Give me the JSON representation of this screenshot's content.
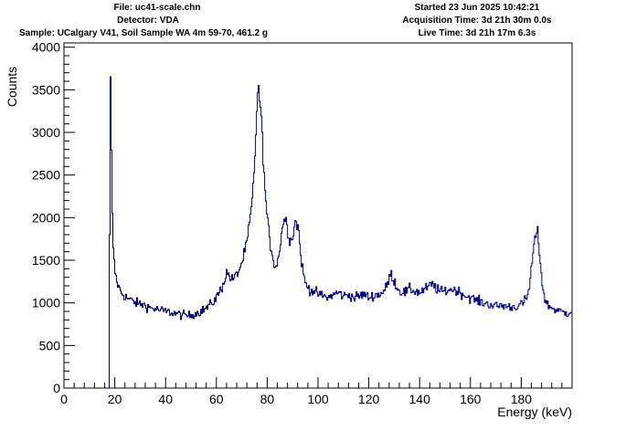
{
  "header": {
    "file": "File: uc41-scale.chn",
    "detector": "Detector: VDA",
    "sample": "Sample: UCalgary V41, Soil Sample WA 4m 59-70, 461.2 g",
    "started": "Started 23 Jun 2025 10:42:21",
    "acquisition": "Acquisition Time: 3d 21h 30m 0.0s",
    "live": "Live Time: 3d 21h 17m 6.3s"
  },
  "chart_data": {
    "type": "line",
    "xlabel": "Energy (keV)",
    "ylabel": "Counts",
    "xlim": [
      0,
      200
    ],
    "ylim": [
      0,
      4050
    ],
    "x_ticks": [
      0,
      20,
      40,
      60,
      80,
      100,
      120,
      140,
      160,
      180
    ],
    "y_ticks": [
      0,
      500,
      1000,
      1500,
      2000,
      2500,
      3000,
      3500,
      4000
    ],
    "line_color": "#000080",
    "series": [
      {
        "x": [
          17.8,
          18.2,
          18.6,
          19.0,
          19.5,
          20.0,
          20.6,
          21.2,
          22.0,
          23.0,
          25.0,
          28.0,
          31.0,
          34.0,
          37.0,
          40.0,
          43.0,
          46.0,
          49.0,
          52.0,
          55.0,
          58.0,
          60.0,
          62.0,
          63.0,
          64.0,
          66.0,
          68.0,
          70.0,
          72.0,
          74.0,
          75.0,
          75.5,
          76.0,
          76.5,
          77.0,
          78.0,
          79.0,
          80.0,
          81.0,
          82.0,
          83.0,
          84.0,
          85.0,
          86.0,
          87.0,
          87.5,
          88.0,
          89.0,
          90.0,
          90.5,
          91.0,
          92.0,
          92.5,
          93.0,
          94.0,
          95.0,
          96.0,
          97.0,
          98.0,
          100.0,
          102.0,
          104.0,
          106.0,
          108.0,
          110.0,
          112.0,
          114.0,
          116.0,
          118.0,
          120.0,
          122.0,
          124.0,
          126.0,
          127.0,
          128.0,
          128.5,
          129.0,
          130.0,
          131.0,
          132.0,
          134.0,
          136.0,
          138.0,
          140.0,
          142.0,
          144.0,
          145.0,
          146.0,
          148.0,
          150.0,
          152.0,
          154.0,
          156.0,
          158.0,
          160.0,
          162.0,
          164.0,
          166.0,
          168.0,
          170.0,
          172.0,
          174.0,
          176.0,
          178.0,
          180.0,
          182.0,
          183.0,
          184.0,
          185.0,
          186.0,
          186.5,
          187.0,
          188.0,
          189.0,
          190.0,
          192.0,
          194.0,
          196.0,
          198.0,
          200.0
        ],
        "y": [
          1800,
          3800,
          2500,
          1800,
          1500,
          1350,
          1260,
          1200,
          1140,
          1100,
          1050,
          1000,
          980,
          940,
          920,
          900,
          880,
          860,
          850,
          880,
          920,
          990,
          1070,
          1180,
          1270,
          1360,
          1270,
          1330,
          1480,
          1720,
          2200,
          2700,
          3100,
          3430,
          3480,
          3380,
          2900,
          2300,
          1950,
          1700,
          1550,
          1420,
          1480,
          1700,
          1930,
          2000,
          1930,
          1840,
          1720,
          1800,
          1900,
          1960,
          1890,
          1780,
          1570,
          1350,
          1220,
          1180,
          1150,
          1140,
          1100,
          1080,
          1060,
          1100,
          1120,
          1080,
          1100,
          1060,
          1080,
          1100,
          1060,
          1090,
          1100,
          1140,
          1200,
          1300,
          1340,
          1310,
          1250,
          1180,
          1140,
          1120,
          1160,
          1140,
          1120,
          1160,
          1200,
          1220,
          1180,
          1130,
          1140,
          1160,
          1150,
          1120,
          1080,
          1060,
          1030,
          1010,
          990,
          980,
          960,
          970,
          960,
          950,
          960,
          980,
          1050,
          1180,
          1450,
          1700,
          1850,
          1780,
          1600,
          1250,
          1060,
          980,
          940,
          910,
          890,
          880,
          920
        ]
      }
    ]
  }
}
